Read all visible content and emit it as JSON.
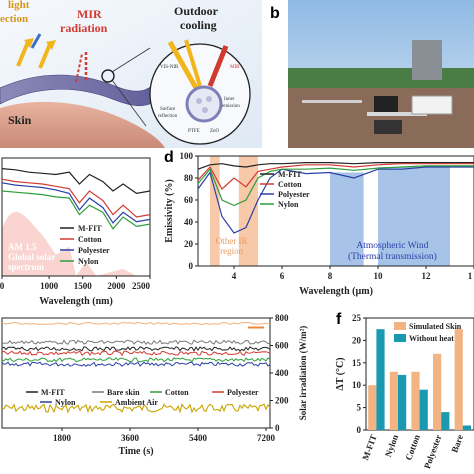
{
  "panel_a": {
    "texts": {
      "solar": "light",
      "solar2": "ection",
      "mir": "MIR",
      "mir2": "radiation",
      "outdoor": "Outdoor",
      "cooling": "cooling",
      "skin": "Skin",
      "visnir": "VIS-NIR",
      "mir_small": "MIR",
      "surface": "Surface",
      "reflection": "reflection",
      "inner": "Inner",
      "emission": "emission",
      "ptfe": "PTFE",
      "zno": "ZnO"
    }
  },
  "panel_b": {
    "label": "b"
  },
  "chart_data": [
    {
      "id": "c",
      "type": "line",
      "xlabel": "Wavelength (nm)",
      "xlim": [
        300,
        2500
      ],
      "x_ticks": [
        "0",
        "1000",
        "1500",
        "2000",
        "2500"
      ],
      "x": [
        300,
        500,
        700,
        900,
        1100,
        1300,
        1450,
        1600,
        1800,
        1950,
        2100,
        2300,
        2500
      ],
      "series": [
        {
          "name": "M-FIT",
          "color": "#222222",
          "values": [
            91,
            90,
            88,
            87,
            86,
            88,
            78,
            86,
            80,
            72,
            78,
            70,
            72
          ]
        },
        {
          "name": "Cotton",
          "color": "#d23a30",
          "values": [
            82,
            80,
            79,
            78,
            76,
            74,
            62,
            72,
            64,
            52,
            60,
            50,
            52
          ]
        },
        {
          "name": "Polyester",
          "color": "#2b3fa8",
          "values": [
            79,
            77,
            76,
            75,
            73,
            70,
            56,
            66,
            58,
            45,
            54,
            46,
            48
          ]
        },
        {
          "name": "Nylon",
          "color": "#2e9e3a",
          "values": [
            72,
            71,
            70,
            69,
            67,
            66,
            52,
            60,
            54,
            40,
            50,
            42,
            44
          ]
        }
      ],
      "spectrum_label": [
        "AM 1.5",
        "Global solar",
        "spectrum"
      ]
    },
    {
      "id": "d",
      "type": "line",
      "title_letter": "d",
      "xlabel": "Wavelength (µm)",
      "ylabel": "Emissivity (%)",
      "xlim": [
        2.5,
        14
      ],
      "ylim": [
        0,
        100
      ],
      "x_ticks": [
        "4",
        "6",
        "8",
        "10",
        "12",
        "1"
      ],
      "y_ticks": [
        "0",
        "20",
        "40",
        "60",
        "80",
        "100"
      ],
      "x": [
        2.5,
        3.0,
        3.5,
        4.0,
        4.5,
        5.0,
        5.5,
        6.0,
        7.0,
        8.0,
        9.0,
        10.0,
        11.0,
        12.0,
        13.0,
        14.0
      ],
      "series": [
        {
          "name": "M-FIT",
          "color": "#222222",
          "values": [
            88,
            92,
            93,
            91,
            90,
            92,
            93,
            93,
            94,
            94,
            93,
            94,
            94,
            94,
            94,
            94
          ]
        },
        {
          "name": "Cotton",
          "color": "#d23a30",
          "values": [
            78,
            90,
            70,
            80,
            72,
            86,
            88,
            90,
            92,
            92,
            90,
            92,
            93,
            93,
            93,
            93
          ]
        },
        {
          "name": "Polyester",
          "color": "#2b3fa8",
          "values": [
            70,
            85,
            45,
            30,
            35,
            60,
            80,
            88,
            84,
            85,
            80,
            88,
            88,
            90,
            90,
            90
          ]
        },
        {
          "name": "Nylon",
          "color": "#2e9e3a",
          "values": [
            75,
            88,
            60,
            55,
            60,
            80,
            86,
            88,
            88,
            89,
            87,
            89,
            90,
            91,
            91,
            91
          ]
        }
      ],
      "region_labels": [
        "Other IR",
        "region"
      ],
      "window_labels": [
        "Atmospheric Wind",
        "(Thermal transmission)"
      ]
    },
    {
      "id": "e",
      "type": "line",
      "xlabel": "Time (s)",
      "y2label": "Solar irradiation (W/m²)",
      "x_ticks": [
        "1800",
        "3600",
        "5400",
        "7200"
      ],
      "y2_ticks": [
        "0",
        "200",
        "400",
        "600",
        "800"
      ],
      "y2lim": [
        0,
        800
      ],
      "legend": [
        "M-FIT",
        "Bare skin",
        "Cotton",
        "Polyester",
        "Nylon",
        "Ambient Air"
      ],
      "colors": [
        "#222222",
        "#7a7a7a",
        "#2e9e3a",
        "#d23a30",
        "#2b3fa8",
        "#c9a400"
      ],
      "levels": [
        0.28,
        0.22,
        0.38,
        0.32,
        0.42,
        0.82
      ],
      "solar_level": 760
    },
    {
      "id": "f",
      "type": "bar",
      "title_letter": "f",
      "ylabel": "ΔT (°C)",
      "ylim": [
        0,
        25
      ],
      "y_ticks": [
        "0",
        "5",
        "10",
        "15",
        "20",
        "25"
      ],
      "categories": [
        "M-FIT",
        "Nylon",
        "Cotton",
        "Polyester",
        "Bare"
      ],
      "series": [
        {
          "name": "Simulated Skin",
          "color": "#f3b483",
          "values": [
            10,
            13,
            13,
            17,
            22.5
          ]
        },
        {
          "name": "Without heat",
          "color": "#1a9ab1",
          "values": [
            22.5,
            12.3,
            9,
            4,
            1
          ]
        }
      ]
    }
  ]
}
